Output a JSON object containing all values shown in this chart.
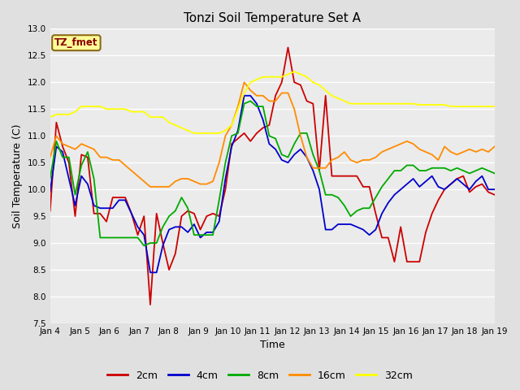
{
  "title": "Tonzi Soil Temperature Set A",
  "xlabel": "Time",
  "ylabel": "Soil Temperature (C)",
  "ylim": [
    7.5,
    13.0
  ],
  "yticks": [
    7.5,
    8.0,
    8.5,
    9.0,
    9.5,
    10.0,
    10.5,
    11.0,
    11.5,
    12.0,
    12.5,
    13.0
  ],
  "xtick_labels": [
    "Jan 4",
    "Jan 5",
    "Jan 6",
    "Jan 7",
    "Jan 8",
    "Jan 9",
    "Jan 10",
    "Jan 11",
    "Jan 12",
    "Jan 13",
    "Jan 14",
    "Jan 15",
    "Jan 16",
    "Jan 17",
    "Jan 18",
    "Jan 19"
  ],
  "annotation_text": "TZ_fmet",
  "annotation_color": "#8B0000",
  "annotation_bg": "#FFFF99",
  "annotation_border": "#8B6914",
  "series": {
    "2cm": {
      "color": "#CC0000",
      "linewidth": 1.3,
      "values": [
        9.6,
        11.25,
        10.8,
        10.5,
        9.5,
        10.65,
        10.6,
        9.55,
        9.55,
        9.4,
        9.85,
        9.85,
        9.85,
        9.55,
        9.15,
        9.5,
        7.85,
        9.55,
        9.0,
        8.5,
        8.8,
        9.5,
        9.6,
        9.55,
        9.25,
        9.5,
        9.55,
        9.5,
        10.0,
        10.85,
        10.95,
        11.05,
        10.9,
        11.05,
        11.15,
        11.2,
        11.75,
        12.0,
        12.65,
        12.0,
        11.95,
        11.65,
        11.6,
        10.35,
        11.75,
        10.25,
        10.25,
        10.25,
        10.25,
        10.25,
        10.05,
        10.05,
        9.55,
        9.1,
        9.1,
        8.65,
        9.3,
        8.65,
        8.65,
        8.65,
        9.2,
        9.55,
        9.8,
        10.0,
        10.1,
        10.2,
        10.25,
        9.95,
        10.05,
        10.1,
        9.95,
        9.9
      ]
    },
    "4cm": {
      "color": "#0000CC",
      "linewidth": 1.3,
      "values": [
        9.95,
        10.8,
        10.7,
        10.2,
        9.7,
        10.25,
        10.1,
        9.7,
        9.65,
        9.65,
        9.65,
        9.8,
        9.8,
        9.55,
        9.3,
        9.15,
        8.45,
        8.45,
        8.95,
        9.25,
        9.3,
        9.3,
        9.2,
        9.35,
        9.1,
        9.2,
        9.2,
        9.4,
        10.2,
        10.8,
        11.1,
        11.75,
        11.75,
        11.6,
        11.3,
        10.85,
        10.75,
        10.55,
        10.5,
        10.65,
        10.75,
        10.6,
        10.35,
        10.0,
        9.25,
        9.25,
        9.35,
        9.35,
        9.35,
        9.3,
        9.25,
        9.15,
        9.25,
        9.55,
        9.75,
        9.9,
        10.0,
        10.1,
        10.2,
        10.05,
        10.15,
        10.25,
        10.05,
        10.0,
        10.1,
        10.2,
        10.1,
        10.0,
        10.15,
        10.25,
        10.0,
        10.0
      ]
    },
    "8cm": {
      "color": "#00AA00",
      "linewidth": 1.3,
      "values": [
        10.2,
        10.9,
        10.6,
        10.6,
        9.9,
        10.45,
        10.7,
        10.2,
        9.1,
        9.1,
        9.1,
        9.1,
        9.1,
        9.1,
        9.1,
        8.95,
        9.0,
        9.0,
        9.3,
        9.5,
        9.6,
        9.85,
        9.65,
        9.15,
        9.15,
        9.15,
        9.15,
        9.8,
        10.5,
        11.0,
        11.05,
        11.6,
        11.65,
        11.55,
        11.55,
        11.0,
        10.95,
        10.65,
        10.6,
        10.85,
        11.05,
        11.05,
        10.65,
        10.35,
        9.9,
        9.9,
        9.85,
        9.7,
        9.5,
        9.6,
        9.65,
        9.65,
        9.85,
        10.05,
        10.2,
        10.35,
        10.35,
        10.45,
        10.45,
        10.35,
        10.35,
        10.4,
        10.4,
        10.4,
        10.35,
        10.4,
        10.35,
        10.3,
        10.35,
        10.4,
        10.35,
        10.3
      ]
    },
    "16cm": {
      "color": "#FF8C00",
      "linewidth": 1.3,
      "values": [
        10.6,
        11.0,
        10.85,
        10.8,
        10.75,
        10.85,
        10.8,
        10.75,
        10.6,
        10.6,
        10.55,
        10.55,
        10.45,
        10.35,
        10.25,
        10.15,
        10.05,
        10.05,
        10.05,
        10.05,
        10.15,
        10.2,
        10.2,
        10.15,
        10.1,
        10.1,
        10.15,
        10.5,
        11.0,
        11.2,
        11.55,
        12.0,
        11.85,
        11.75,
        11.75,
        11.65,
        11.65,
        11.8,
        11.8,
        11.5,
        11.0,
        10.6,
        10.4,
        10.4,
        10.4,
        10.55,
        10.6,
        10.7,
        10.55,
        10.5,
        10.55,
        10.55,
        10.6,
        10.7,
        10.75,
        10.8,
        10.85,
        10.9,
        10.85,
        10.75,
        10.7,
        10.65,
        10.55,
        10.8,
        10.7,
        10.65,
        10.7,
        10.75,
        10.7,
        10.75,
        10.7,
        10.8
      ]
    },
    "32cm": {
      "color": "#FFFF00",
      "linewidth": 1.3,
      "values": [
        11.35,
        11.4,
        11.4,
        11.4,
        11.45,
        11.55,
        11.55,
        11.55,
        11.55,
        11.5,
        11.5,
        11.5,
        11.5,
        11.45,
        11.45,
        11.45,
        11.35,
        11.35,
        11.35,
        11.25,
        11.2,
        11.15,
        11.1,
        11.05,
        11.05,
        11.05,
        11.05,
        11.05,
        11.1,
        11.2,
        11.5,
        11.8,
        12.0,
        12.05,
        12.1,
        12.1,
        12.1,
        12.1,
        12.15,
        12.2,
        12.15,
        12.1,
        12.0,
        11.95,
        11.85,
        11.75,
        11.7,
        11.65,
        11.6,
        11.6,
        11.6,
        11.6,
        11.6,
        11.6,
        11.6,
        11.6,
        11.6,
        11.6,
        11.6,
        11.58,
        11.58,
        11.58,
        11.58,
        11.58,
        11.55,
        11.55,
        11.55,
        11.55,
        11.55,
        11.55,
        11.55,
        11.55
      ]
    }
  },
  "bg_color": "#E0E0E0",
  "plot_bg_color": "#EBEBEB",
  "grid_color": "#FFFFFF",
  "legend_items": [
    "2cm",
    "4cm",
    "8cm",
    "16cm",
    "32cm"
  ],
  "legend_colors": [
    "#CC0000",
    "#0000CC",
    "#00AA00",
    "#FF8C00",
    "#FFFF00"
  ],
  "figsize": [
    6.4,
    4.8
  ],
  "dpi": 100
}
